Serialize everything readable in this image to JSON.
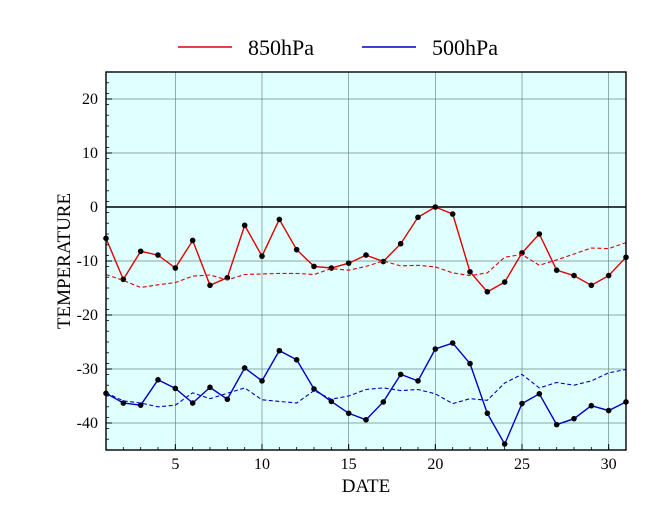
{
  "chart_data": {
    "type": "line",
    "xlabel": "DATE",
    "ylabel": "TEMPERATURE",
    "xlim": [
      1,
      31
    ],
    "ylim": [
      -45,
      25
    ],
    "xticks": [
      5,
      10,
      15,
      20,
      25,
      30
    ],
    "yticks": [
      20,
      10,
      0,
      -10,
      -20,
      -30,
      -40
    ],
    "grid": true,
    "legend_position": "top",
    "background": "#e0ffff",
    "series": [
      {
        "name": "850hPa",
        "color": "#e00000",
        "style": "solid",
        "markers": true,
        "x": [
          1,
          2,
          3,
          4,
          5,
          6,
          7,
          8,
          9,
          10,
          11,
          12,
          13,
          14,
          15,
          16,
          17,
          18,
          19,
          20,
          21,
          22,
          23,
          24,
          25,
          26,
          27,
          28,
          29,
          30,
          31
        ],
        "values": [
          -5.8,
          -13.4,
          -8.2,
          -8.9,
          -11.3,
          -6.2,
          -14.5,
          -13.1,
          -3.4,
          -9.1,
          -2.3,
          -7.9,
          -11.0,
          -11.3,
          -10.4,
          -8.9,
          -10.1,
          -6.8,
          -1.9,
          0.0,
          -1.3,
          -12.0,
          -15.7,
          -13.9,
          -8.5,
          -5.0,
          -11.7,
          -12.7,
          -14.5,
          -12.7,
          -9.3
        ]
      },
      {
        "name": "",
        "color": "#e00000",
        "style": "dashed",
        "markers": false,
        "x": [
          1,
          2,
          3,
          4,
          5,
          6,
          7,
          8,
          9,
          10,
          11,
          12,
          13,
          14,
          15,
          16,
          17,
          18,
          19,
          20,
          21,
          22,
          23,
          24,
          25,
          26,
          27,
          28,
          29,
          30,
          31
        ],
        "values": [
          -12.5,
          -13.6,
          -14.9,
          -14.4,
          -14.0,
          -12.8,
          -12.6,
          -13.5,
          -12.5,
          -12.4,
          -12.3,
          -12.3,
          -12.5,
          -11.4,
          -11.7,
          -11.0,
          -10.0,
          -10.9,
          -10.8,
          -11.1,
          -12.2,
          -12.7,
          -12.2,
          -9.3,
          -8.8,
          -10.8,
          -9.8,
          -8.7,
          -7.6,
          -7.7,
          -6.6
        ]
      },
      {
        "name": "500hPa",
        "color": "#0000c0",
        "style": "solid",
        "markers": true,
        "x": [
          1,
          2,
          3,
          4,
          5,
          6,
          7,
          8,
          9,
          10,
          11,
          12,
          13,
          14,
          15,
          16,
          17,
          18,
          19,
          20,
          21,
          22,
          23,
          24,
          25,
          26,
          27,
          28,
          29,
          30,
          31
        ],
        "values": [
          -34.5,
          -36.3,
          -36.7,
          -32.0,
          -33.6,
          -36.3,
          -33.4,
          -35.6,
          -29.8,
          -32.2,
          -26.6,
          -28.3,
          -33.7,
          -36.0,
          -38.2,
          -39.4,
          -36.1,
          -31.0,
          -32.2,
          -26.3,
          -25.2,
          -29.0,
          -38.2,
          -43.9,
          -36.4,
          -34.6,
          -40.3,
          -39.2,
          -36.8,
          -37.7,
          -36.1
        ]
      },
      {
        "name": "",
        "color": "#0000c0",
        "style": "dashed",
        "markers": false,
        "x": [
          1,
          2,
          3,
          4,
          5,
          6,
          7,
          8,
          9,
          10,
          11,
          12,
          13,
          14,
          15,
          16,
          17,
          18,
          19,
          20,
          21,
          22,
          23,
          24,
          25,
          26,
          27,
          28,
          29,
          30,
          31
        ],
        "values": [
          -34.4,
          -35.9,
          -36.3,
          -37.0,
          -36.7,
          -34.4,
          -35.5,
          -34.5,
          -33.5,
          -35.7,
          -36.0,
          -36.3,
          -34.0,
          -35.6,
          -35.0,
          -33.8,
          -33.5,
          -34.0,
          -33.8,
          -34.6,
          -36.4,
          -35.5,
          -35.8,
          -32.6,
          -31.0,
          -33.5,
          -32.5,
          -33.0,
          -32.2,
          -30.7,
          -30.1
        ]
      }
    ]
  }
}
